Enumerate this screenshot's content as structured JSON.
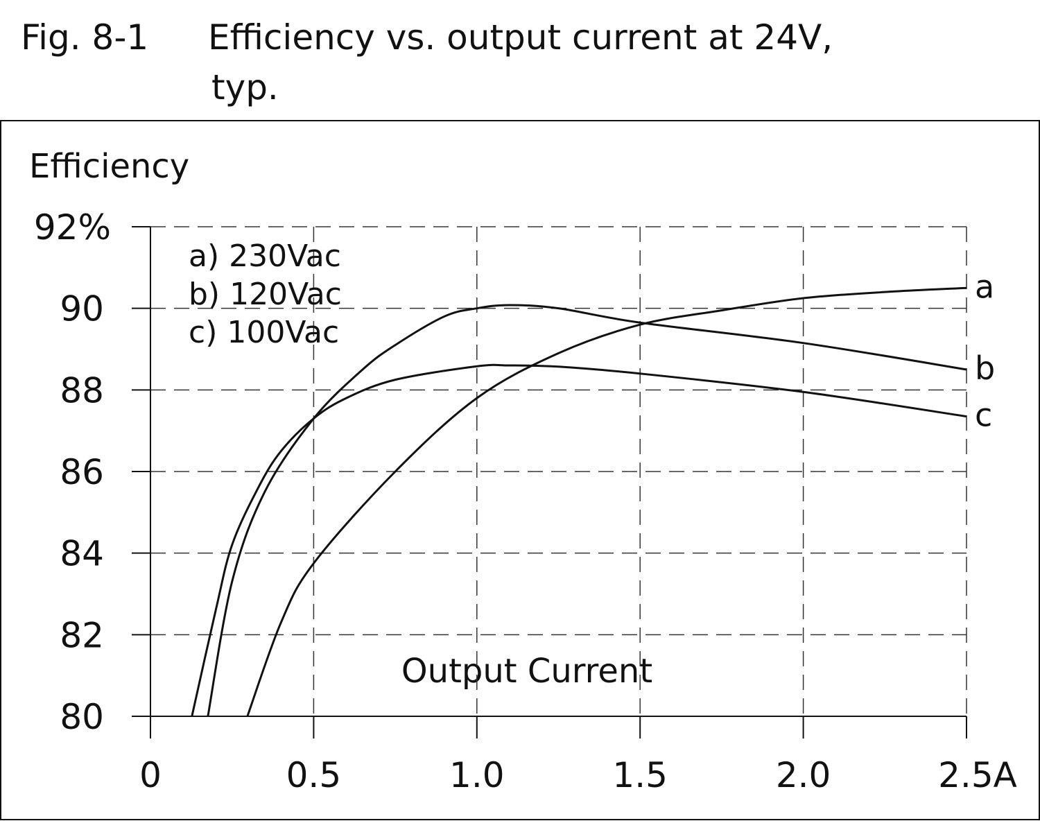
{
  "figure": {
    "number": "Fig. 8-1",
    "title_line1": "Efficiency vs. output current at 24V,",
    "title_line2": "typ."
  },
  "chart_data": {
    "type": "line",
    "title": "Efficiency vs. output current at 24V, typ.",
    "xlabel": "Output Current",
    "ylabel": "Efficiency",
    "xlim": [
      0,
      2.5
    ],
    "ylim": [
      80,
      92
    ],
    "x_ticks": [
      0,
      0.5,
      1.0,
      1.5,
      2.0,
      2.5
    ],
    "x_tick_labels": [
      "0",
      "0.5",
      "1.0",
      "1.5",
      "2.0",
      "2.5A"
    ],
    "y_ticks": [
      80,
      82,
      84,
      86,
      88,
      90,
      92
    ],
    "y_tick_labels": [
      "80",
      "82",
      "84",
      "86",
      "88",
      "90",
      "92%"
    ],
    "grid": true,
    "grid_style": "dashed",
    "legend_placement": "top-left",
    "legend": [
      "a) 230Vac",
      "b) 120Vac",
      "c) 100Vac"
    ],
    "series": [
      {
        "name": "a",
        "x": [
          0.297,
          0.4,
          0.5,
          0.75,
          1.0,
          1.25,
          1.5,
          1.75,
          2.0,
          2.25,
          2.5
        ],
        "y": [
          80,
          82.3,
          83.75,
          86.0,
          87.8,
          88.9,
          89.6,
          89.95,
          90.25,
          90.4,
          90.5
        ]
      },
      {
        "name": "b",
        "x": [
          0.176,
          0.25,
          0.35,
          0.5,
          0.65,
          0.75,
          0.9,
          1.0,
          1.1,
          1.25,
          1.5,
          2.0,
          2.5
        ],
        "y": [
          80,
          83.3,
          85.5,
          87.3,
          88.5,
          89.1,
          89.8,
          90.0,
          90.08,
          90.0,
          89.65,
          89.15,
          88.5
        ]
      },
      {
        "name": "c",
        "x": [
          0.127,
          0.2,
          0.25,
          0.33,
          0.4,
          0.5,
          0.6,
          0.75,
          1.0,
          1.1,
          1.25,
          1.5,
          2.0,
          2.5
        ],
        "y": [
          80,
          82.6,
          84.2,
          85.6,
          86.5,
          87.3,
          87.8,
          88.25,
          88.58,
          88.6,
          88.57,
          88.4,
          87.95,
          87.35
        ]
      }
    ]
  }
}
